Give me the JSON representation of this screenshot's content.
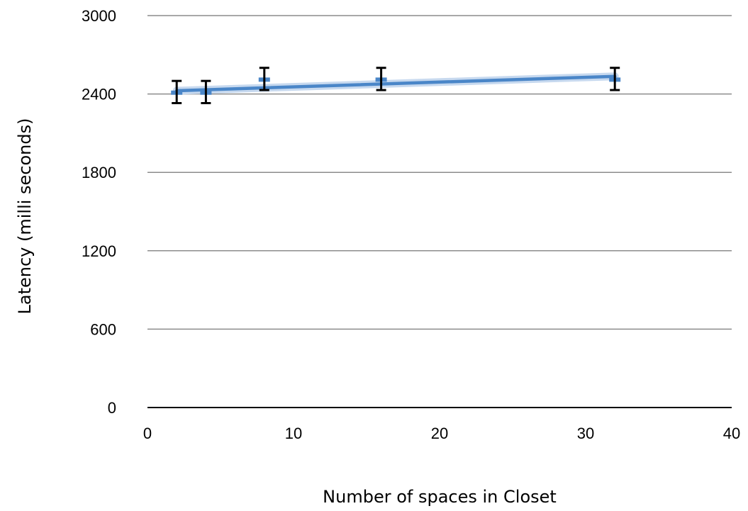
{
  "chart_data": {
    "type": "scatter",
    "title": "",
    "xlabel": "Number of spaces in Closet",
    "ylabel": "Latency (milli seconds)",
    "xlim": [
      0,
      40
    ],
    "ylim": [
      0,
      3000
    ],
    "x_ticks": [
      0,
      10,
      20,
      30,
      40
    ],
    "y_ticks": [
      0,
      600,
      1200,
      1800,
      2400,
      3000
    ],
    "grid": "horizontal",
    "legend": "none",
    "series": [
      {
        "x": [
          2,
          4,
          8,
          16,
          32
        ],
        "y": [
          2410,
          2410,
          2510,
          2510,
          2510
        ],
        "err_low": [
          2330,
          2330,
          2430,
          2430,
          2430
        ],
        "err_high": [
          2500,
          2500,
          2600,
          2600,
          2600
        ],
        "color": "#4a86c8"
      }
    ],
    "trendline": {
      "type": "linear",
      "x": [
        2,
        32
      ],
      "y": [
        2425,
        2535
      ],
      "color": "#4a86c8"
    }
  }
}
